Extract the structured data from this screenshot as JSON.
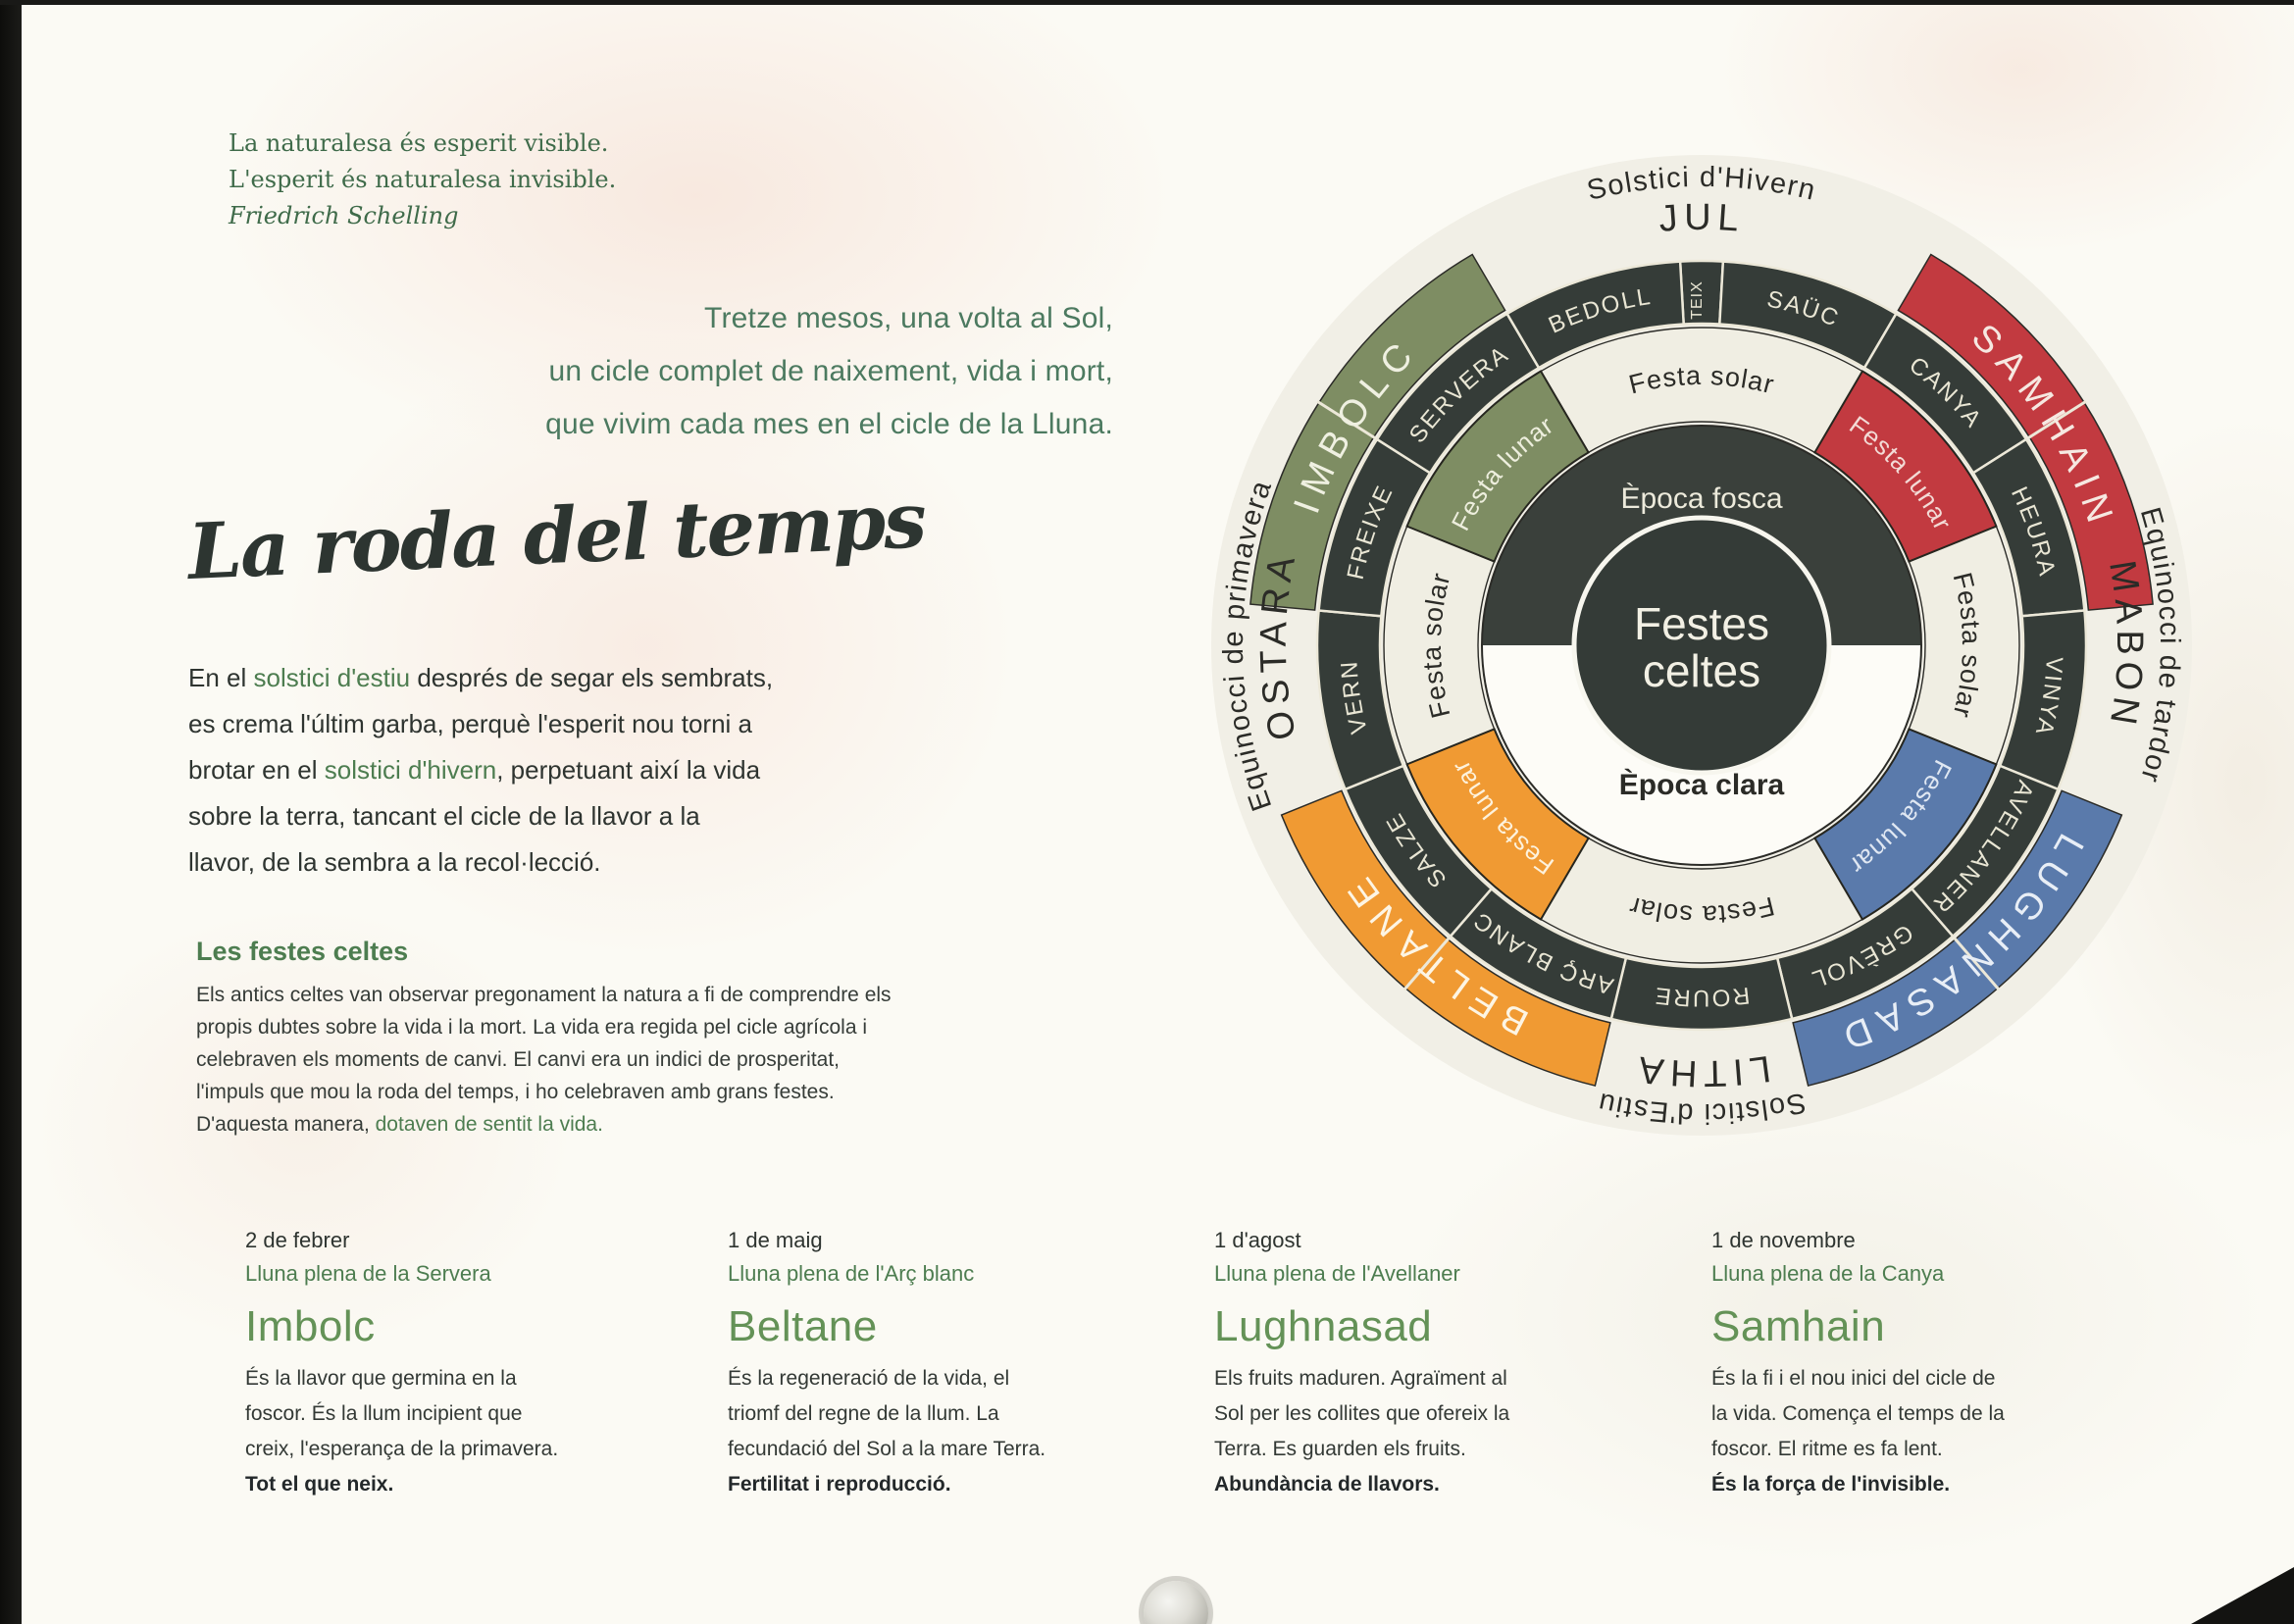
{
  "colors": {
    "accent_green": "#4d7d50",
    "quote_green": "#3f6b4a",
    "title_ink": "#2d3531",
    "page_bg": "#fbfaf4"
  },
  "page": {
    "quote": {
      "line1": "La naturalesa és esperit visible.",
      "line2": "L'esperit és naturalesa invisible.",
      "author": "Friedrich Schelling"
    },
    "intro": {
      "line1": "Tretze mesos, una volta al Sol,",
      "line2": "un cicle complet de naixement, vida i mort,",
      "line3": "que vivim cada mes en el cicle de la Lluna."
    },
    "title": "La roda del temps",
    "lead_lines": [
      [
        {
          "t": "En el "
        },
        {
          "t": "solstici d'estiu",
          "g": true
        },
        {
          "t": " després de segar els sembrats,"
        }
      ],
      [
        {
          "t": "es crema l'últim garba, perquè l'esperit nou torni a"
        }
      ],
      [
        {
          "t": "brotar en el "
        },
        {
          "t": "solstici d'hivern",
          "g": true
        },
        {
          "t": ", perpetuant així la vida"
        }
      ],
      [
        {
          "t": "sobre la terra, tancant el cicle de la llavor a la"
        }
      ],
      [
        {
          "t": "llavor, de la sembra a la recol·lecció."
        }
      ]
    ],
    "festes": {
      "heading": "Les festes celtes",
      "lines": [
        [
          {
            "t": "Els antics celtes van observar pregonament la natura a fi de comprendre els"
          }
        ],
        [
          {
            "t": "propis dubtes sobre la vida i la mort. La vida era regida pel cicle agrícola i"
          }
        ],
        [
          {
            "t": "celebraven els moments de canvi. El canvi era un indici de prosperitat,"
          }
        ],
        [
          {
            "t": "l'impuls que mou la roda del temps, i ho celebraven amb grans festes."
          }
        ],
        [
          {
            "t": "D'aquesta manera, "
          },
          {
            "t": "dotaven de sentit la vida.",
            "g": true
          }
        ]
      ]
    },
    "columns": [
      {
        "date": "2 de febrer",
        "moon": "Lluna plena de la Servera",
        "title": "Imbolc",
        "body_lines": [
          "És la llavor que germina en la",
          "foscor. És la llum incipient que",
          "creix, l'esperança de la primavera."
        ],
        "bold": "Tot el que neix."
      },
      {
        "date": "1 de maig",
        "moon": "Lluna plena de l'Arç blanc",
        "title": "Beltane",
        "body_lines": [
          "És la regeneració de la vida, el",
          "triomf del regne de la llum. La",
          "fecundació del Sol a la mare Terra."
        ],
        "bold": "Fertilitat i reproducció."
      },
      {
        "date": "1 d'agost",
        "moon": "Lluna plena de l'Avellaner",
        "title": "Lughnasad",
        "body_lines": [
          "Els fruits maduren. Agraïment al",
          "Sol per les collites que ofereix la",
          "Terra. Es guarden els fruits."
        ],
        "bold": "Abundància de llavors."
      },
      {
        "date": "1 de novembre",
        "moon": "Lluna plena de la Canya",
        "title": "Samhain",
        "body_lines": [
          "És la fi i el nou inici del cicle de",
          "la vida. Comença el temps de la",
          "foscor. El ritme es fa lent."
        ],
        "bold": "És la força de l'invisible."
      }
    ]
  },
  "wheel": {
    "center_top": "Festes",
    "center_bottom": "celtes",
    "epoch_dark": "Època fosca",
    "epoch_light": "Època clara",
    "solar_label": "Festa solar",
    "lunar_label": "Festa lunar",
    "season_labels": [
      {
        "text": "Solstici d'Hivern",
        "angle": 0
      },
      {
        "text": "Equinocci de tardor",
        "angle": 90
      },
      {
        "text": "Solstici d'Estiu",
        "angle": 180
      },
      {
        "text": "Equinocci de primavera",
        "angle": 270
      }
    ],
    "solar_festivals": [
      {
        "text": "JUL",
        "angle": 0
      },
      {
        "text": "MABON",
        "angle": 90
      },
      {
        "text": "LITHA",
        "angle": 180
      },
      {
        "text": "OSTARA",
        "angle": 270
      }
    ],
    "festival_arcs": [
      {
        "label": "SAMHAIN",
        "start": 30.4,
        "end": 84.8,
        "color": "#c23a40",
        "text_color": "#f6e8e1"
      },
      {
        "label": "LUGHNASAD",
        "start": 112,
        "end": 166.4,
        "color": "#5a7aab",
        "text_color": "#e8eef6"
      },
      {
        "label": "BELTANE",
        "start": 193.6,
        "end": 248,
        "color": "#f09a33",
        "text_color": "#fdf5e4"
      },
      {
        "label": "IMBOLC",
        "start": 275.2,
        "end": 329.6,
        "color": "#7e8d63",
        "text_color": "#eff0e1"
      }
    ],
    "lunar_wedges": [
      {
        "start": 30.4,
        "end": 68,
        "color": "#c23a40",
        "text_color": "#f3dbd6"
      },
      {
        "start": 112,
        "end": 149.6,
        "color": "#5a7aab",
        "text_color": "#dfe7f2"
      },
      {
        "start": 210.4,
        "end": 248,
        "color": "#f09a33",
        "text_color": "#fdf2dd"
      },
      {
        "start": 292,
        "end": 329.6,
        "color": "#7e8d63",
        "text_color": "#edeedd"
      }
    ],
    "solar_wedges": [
      {
        "start": 329.6,
        "end": 390.4,
        "label_angle": 0
      },
      {
        "start": 68,
        "end": 112,
        "label_angle": 90
      },
      {
        "start": 149.6,
        "end": 210.4,
        "label_angle": 180
      },
      {
        "start": 248,
        "end": 292,
        "label_angle": 270
      }
    ],
    "tree_segments": [
      {
        "label": "TEIX",
        "start": -3.2,
        "end": 3.2,
        "radial": true
      },
      {
        "label": "SAÜC",
        "start": 3.2,
        "end": 30.4
      },
      {
        "label": "CANYA",
        "start": 30.4,
        "end": 57.6
      },
      {
        "label": "HEURA",
        "start": 57.6,
        "end": 84.8
      },
      {
        "label": "VINYA",
        "start": 84.8,
        "end": 112
      },
      {
        "label": "AVELLANER",
        "start": 112,
        "end": 139.2
      },
      {
        "label": "GRÈVOL",
        "start": 139.2,
        "end": 166.4
      },
      {
        "label": "ROURE",
        "start": 166.4,
        "end": 193.6
      },
      {
        "label": "ARÇ BLANC",
        "start": 193.6,
        "end": 220.8
      },
      {
        "label": "SALZE",
        "start": 220.8,
        "end": 248
      },
      {
        "label": "VERN",
        "start": 248,
        "end": 275.2
      },
      {
        "label": "FREIXE",
        "start": 275.2,
        "end": 302.4
      },
      {
        "label": "SERVERA",
        "start": 302.4,
        "end": 329.6
      },
      {
        "label": "BEDOLL",
        "start": 329.6,
        "end": 356.8
      }
    ],
    "colors": {
      "dark": "#353c38",
      "cream": "#f0eee3",
      "disc": "#f1efe6",
      "ring_text": "#e9e6d4",
      "label_dark": "#2b2b27",
      "center_text": "#f2f0e4"
    }
  }
}
